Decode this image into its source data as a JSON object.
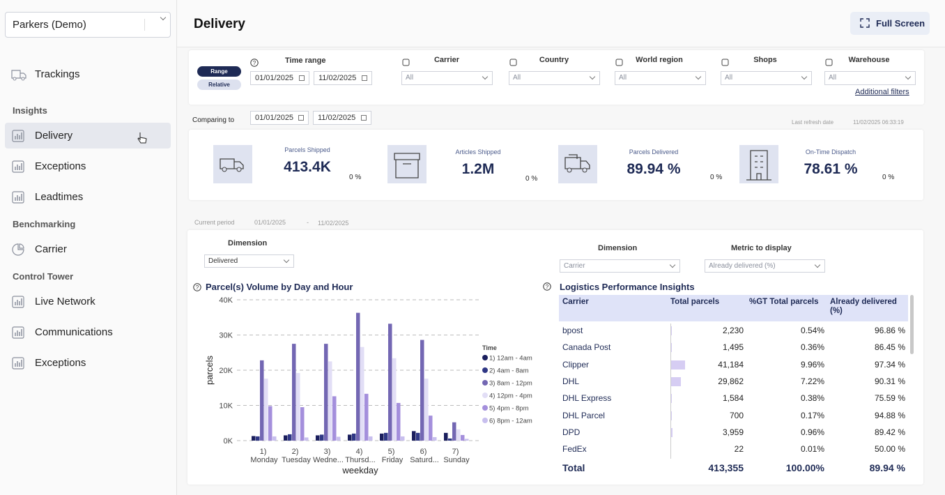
{
  "sidebar": {
    "org": "Parkers (Demo)",
    "top": [
      "Trackings"
    ],
    "sections": [
      {
        "title": "Insights",
        "items": [
          "Delivery",
          "Exceptions",
          "Leadtimes"
        ]
      },
      {
        "title": "Benchmarking",
        "items": [
          "Carrier"
        ]
      },
      {
        "title": "Control Tower",
        "items": [
          "Live Network",
          "Communications",
          "Exceptions"
        ]
      }
    ]
  },
  "header": {
    "title": "Delivery",
    "button": "Full Screen"
  },
  "filters": {
    "modes": [
      "Range",
      "Relative"
    ],
    "time_range": {
      "label": "Time range",
      "from": "01/01/2025",
      "to": "11/02/2025"
    },
    "dropdowns": [
      {
        "label": "Carrier",
        "value": "All"
      },
      {
        "label": "Country",
        "value": "All"
      },
      {
        "label": "World region",
        "value": "All"
      },
      {
        "label": "Shops",
        "value": "All"
      },
      {
        "label": "Warehouse",
        "value": "All"
      }
    ],
    "additional": "Additional filters"
  },
  "compare": {
    "label": "Comparing to",
    "from": "01/01/2025",
    "to": "11/02/2025",
    "refresh_label": "Last refresh date",
    "refresh_value": "11/02/2025 06:33:19"
  },
  "kpis": [
    {
      "label": "Parcels Shipped",
      "value": "413.4K",
      "change": "0 %"
    },
    {
      "label": "Articles Shipped",
      "value": "1.2M",
      "change": "0 %"
    },
    {
      "label": "Parcels Delivered",
      "value": "89.94 %",
      "change": "0 %"
    },
    {
      "label": "On-Time Dispatch",
      "value": "78.61 %",
      "change": "0 %"
    }
  ],
  "period": {
    "label": "Current period",
    "from": "01/01/2025",
    "separator": "-",
    "to": "11/02/2025"
  },
  "chart_controls": {
    "label": "Dimension",
    "value": "Delivered"
  },
  "chart_data": {
    "type": "bar",
    "title": "Parcel(s) Volume by Day and Hour",
    "x_label": "weekday",
    "y_label": "parcels",
    "legend_title": "Time",
    "categories": [
      "1) Monday",
      "2) Tuesday",
      "3) Wedne...",
      "4) Thursd...",
      "5) Friday",
      "6) Saturd...",
      "7) Sunday"
    ],
    "series": [
      {
        "name": "1) 12am - 4am",
        "color": "#1b1f5e",
        "values": [
          1300,
          1500,
          1500,
          1700,
          2000,
          2700,
          2200
        ]
      },
      {
        "name": "2) 4am - 8am",
        "color": "#2f3785",
        "values": [
          1200,
          1800,
          1700,
          2000,
          2200,
          2200,
          600
        ]
      },
      {
        "name": "3) 8am - 12pm",
        "color": "#7367b3",
        "values": [
          22800,
          27500,
          27500,
          36300,
          33200,
          28600,
          5200
        ]
      },
      {
        "name": "4) 12pm - 4pm",
        "color": "#e2def6",
        "values": [
          17600,
          19200,
          22500,
          26600,
          23400,
          17600,
          3200
        ]
      },
      {
        "name": "5) 4pm - 8pm",
        "color": "#a48fdc",
        "values": [
          9800,
          9500,
          12600,
          13300,
          10700,
          7100,
          1600
        ]
      },
      {
        "name": "6) 8pm - 12am",
        "color": "#c8bfee",
        "values": [
          1200,
          900,
          1100,
          1200,
          1200,
          1000,
          500
        ]
      }
    ],
    "ylim": [
      0,
      40000
    ],
    "yticks": [
      {
        "value": 0,
        "label": "0K"
      },
      {
        "value": 10000,
        "label": "10K"
      },
      {
        "value": 20000,
        "label": "20K"
      },
      {
        "value": 30000,
        "label": "30K"
      },
      {
        "value": 40000,
        "label": "40K"
      }
    ],
    "grid": true
  },
  "table_controls": {
    "dimension": {
      "label": "Dimension",
      "value": "Carrier"
    },
    "metric": {
      "label": "Metric to display",
      "value": "Already delivered (%)"
    }
  },
  "table": {
    "title": "Logistics Performance Insights",
    "columns": [
      "Carrier",
      "Total parcels",
      "%GT Total parcels",
      "Already delivered (%)"
    ],
    "rows": [
      [
        "bpost",
        "2,230",
        "0.54%",
        "96.86 %"
      ],
      [
        "Canada Post",
        "1,495",
        "0.36%",
        "86.45 %"
      ],
      [
        "Clipper",
        "41,184",
        "9.96%",
        "97.34 %"
      ],
      [
        "DHL",
        "29,862",
        "7.22%",
        "90.31 %"
      ],
      [
        "DHL Express",
        "1,584",
        "0.38%",
        "75.59 %"
      ],
      [
        "DHL Parcel",
        "700",
        "0.17%",
        "94.88 %"
      ],
      [
        "DPD",
        "3,959",
        "0.96%",
        "89.42 %"
      ],
      [
        "FedEx",
        "22",
        "0.01%",
        "50.00 %"
      ]
    ],
    "total": [
      "Total",
      "413,355",
      "100.00%",
      "89.94 %"
    ]
  }
}
